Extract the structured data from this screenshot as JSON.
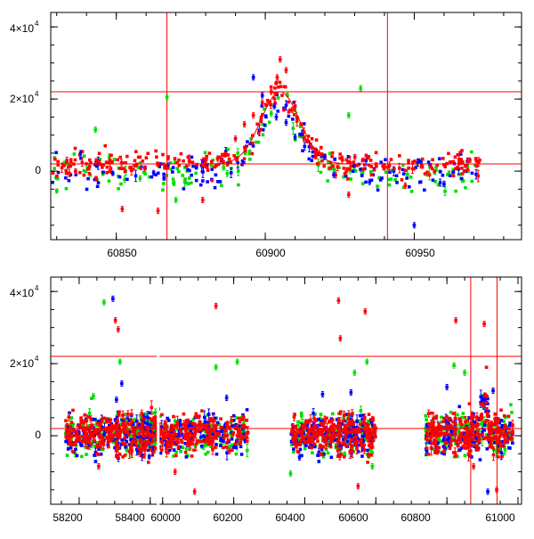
{
  "chart_data": [
    {
      "type": "scatter",
      "title": "",
      "xlabel": "",
      "ylabel": "",
      "xlim": [
        60828,
        60986
      ],
      "ylim": [
        -19000,
        44000
      ],
      "x_ticks": [
        60850,
        60900,
        60950
      ],
      "x_tick_labels": [
        "60850",
        "60900",
        "60950"
      ],
      "y_ticks": [
        0,
        20000,
        40000
      ],
      "y_tick_labels": [
        {
          "mantissa": "0",
          "exp": ""
        },
        {
          "mantissa": "2×10",
          "exp": "4"
        },
        {
          "mantissa": "4×10",
          "exp": "4"
        }
      ],
      "hlines": [
        22000,
        2000
      ],
      "vlines": [
        60867,
        60941
      ],
      "fit_curve": {
        "type": "gaussian",
        "baseline": 2000,
        "amplitude": 20000,
        "center": 60905,
        "sigma": 6.5
      },
      "series": [
        {
          "name": "red",
          "color": "#ff0000",
          "points": [
            [
              60884,
              3500
            ],
            [
              60890,
              9000
            ],
            [
              60893,
              13000
            ],
            [
              60896,
              15500
            ],
            [
              60899,
              19000
            ],
            [
              60902,
              22000
            ],
            [
              60904,
              26000
            ],
            [
              60905,
              31000
            ],
            [
              60907,
              28000
            ],
            [
              60909,
              17000
            ],
            [
              60913,
              9000
            ],
            [
              60918,
              5000
            ],
            [
              60928,
              -6500
            ],
            [
              60947,
              -4000
            ],
            [
              60852,
              -10500
            ],
            [
              60864,
              -11000
            ],
            [
              60879,
              -8000
            ]
          ]
        },
        {
          "name": "blue",
          "color": "#0000ff",
          "points": [
            [
              60838,
              5000
            ],
            [
              60896,
              26000
            ],
            [
              60899,
              21000
            ],
            [
              60903,
              18000
            ],
            [
              60907,
              13500
            ],
            [
              60910,
              9500
            ],
            [
              60920,
              4000
            ],
            [
              60923,
              -1000
            ],
            [
              60935,
              -3000
            ],
            [
              60950,
              -15000
            ],
            [
              60960,
              -3500
            ]
          ]
        },
        {
          "name": "green",
          "color": "#00dd00",
          "points": [
            [
              60843,
              11500
            ],
            [
              60867,
              20500
            ],
            [
              60902,
              16000
            ],
            [
              60932,
              23000
            ],
            [
              60928,
              15500
            ],
            [
              60886,
              1000
            ],
            [
              60858,
              -2000
            ],
            [
              60870,
              -8000
            ]
          ]
        }
      ]
    },
    {
      "type": "scatter",
      "title": "",
      "xlabel": "",
      "ylabel": "",
      "xlim": [
        58120,
        61010
      ],
      "ylim": [
        -19000,
        44000
      ],
      "x_ticks": [
        58200,
        58400,
        60000,
        60200,
        60400,
        60600,
        60800,
        61000
      ],
      "x_tick_labels": [
        "58200",
        "58400",
        "60000",
        "60200",
        "60400",
        "60600",
        "60800",
        "61000"
      ],
      "y_ticks": [
        0,
        20000,
        40000
      ],
      "y_tick_labels": [
        {
          "mantissa": "0",
          "exp": ""
        },
        {
          "mantissa": "2×10",
          "exp": "4"
        },
        {
          "mantissa": "4×10",
          "exp": "4"
        }
      ],
      "hlines": [
        22000,
        2000
      ],
      "vlines": [
        60867,
        60941
      ],
      "seasons": [
        {
          "start": 58160,
          "end": 58420
        },
        {
          "start": 59930,
          "end": 60240
        },
        {
          "start": 60360,
          "end": 60600
        },
        {
          "start": 60740,
          "end": 60985
        }
      ],
      "series": [
        {
          "name": "red",
          "color": "#ff0000",
          "points": [
            [
              58302,
              32000
            ],
            [
              58310,
              29500
            ],
            [
              58255,
              -8500
            ],
            [
              60150,
              36000
            ],
            [
              60035,
              -10000
            ],
            [
              60090,
              -15500
            ],
            [
              60495,
              37500
            ],
            [
              60500,
              27000
            ],
            [
              60570,
              34500
            ],
            [
              60550,
              -14000
            ],
            [
              60825,
              32000
            ],
            [
              60905,
              31000
            ],
            [
              60875,
              -8500
            ],
            [
              60940,
              -15000
            ]
          ]
        },
        {
          "name": "blue",
          "color": "#0000ff",
          "points": [
            [
              58295,
              38000
            ],
            [
              58320,
              14500
            ],
            [
              58305,
              10000
            ],
            [
              60180,
              10500
            ],
            [
              60450,
              11500
            ],
            [
              60530,
              12000
            ],
            [
              60800,
              13500
            ],
            [
              60930,
              12500
            ],
            [
              60915,
              -15500
            ],
            [
              60385,
              -6000
            ]
          ]
        },
        {
          "name": "green",
          "color": "#00dd00",
          "points": [
            [
              58270,
              37000
            ],
            [
              58315,
              20500
            ],
            [
              58240,
              11000
            ],
            [
              60210,
              20500
            ],
            [
              60150,
              19000
            ],
            [
              60575,
              20500
            ],
            [
              60540,
              17500
            ],
            [
              60360,
              -10500
            ],
            [
              60590,
              -8500
            ],
            [
              60850,
              17500
            ],
            [
              60820,
              19500
            ]
          ]
        }
      ]
    }
  ]
}
